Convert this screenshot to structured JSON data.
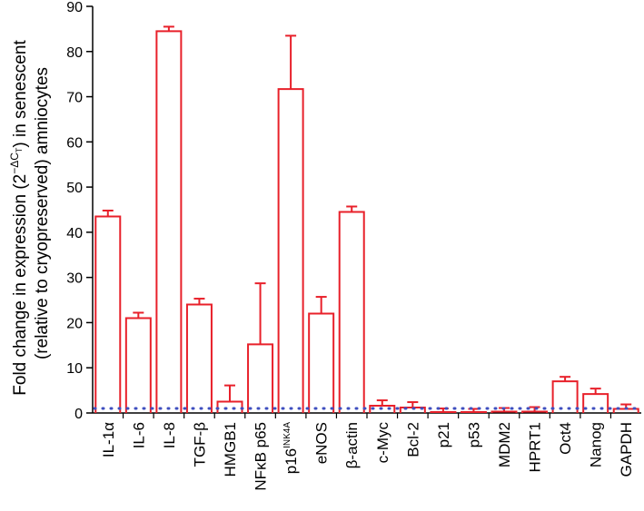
{
  "chart_data": {
    "type": "bar",
    "title": "",
    "ylabel_line1_prefix": "Fold change in expression (2",
    "ylabel_line1_exp": "−ΔC",
    "ylabel_line1_exp_sub": "T",
    "ylabel_line1_suffix": ") in senescent",
    "ylabel_line2": "(relative to cryopreserved) amniocytes",
    "ylim": [
      0,
      90
    ],
    "yticks": [
      "0",
      "10",
      "20",
      "30",
      "40",
      "50",
      "60",
      "70",
      "80",
      "90"
    ],
    "categories": [
      "IL-1α",
      "IL-6",
      "IL-8",
      "TGF-β",
      "HMGB1",
      "NFκB p65",
      "p16",
      "eNOS",
      "β-actin",
      "c-Myc",
      "Bcl-2",
      "p21",
      "p53",
      "MDM2",
      "HPRT1",
      "Oct4",
      "Nanog",
      "GAPDH"
    ],
    "category_superscripts": {
      "6": "INK4A"
    },
    "values": [
      43.5,
      21,
      84.5,
      24,
      2.5,
      15.2,
      71.7,
      22,
      44.5,
      1.6,
      1.2,
      0.2,
      0.2,
      0.3,
      0.3,
      7,
      4.2,
      0.9
    ],
    "errors": [
      1.3,
      1.2,
      1.0,
      1.3,
      3.6,
      13.5,
      11.8,
      3.7,
      1.2,
      1.2,
      1.2,
      0.8,
      0.7,
      0.8,
      1.0,
      1.0,
      1.2,
      1.0
    ],
    "reference_line": 1,
    "colors": {
      "bar": "#e8202a",
      "reference": "#3f4fbf",
      "axis": "#000000"
    }
  }
}
